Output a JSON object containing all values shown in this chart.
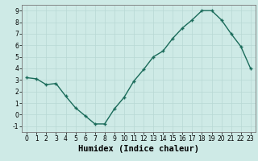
{
  "x": [
    0,
    1,
    2,
    3,
    4,
    5,
    6,
    7,
    8,
    9,
    10,
    11,
    12,
    13,
    14,
    15,
    16,
    17,
    18,
    19,
    20,
    21,
    22,
    23
  ],
  "y": [
    3.2,
    3.1,
    2.6,
    2.7,
    1.6,
    0.6,
    -0.1,
    -0.8,
    -0.8,
    0.5,
    1.5,
    2.9,
    3.9,
    5.0,
    5.5,
    6.6,
    7.5,
    8.2,
    9.0,
    9.0,
    8.2,
    7.0,
    5.9,
    4.0
  ],
  "line_color": "#1a6b5a",
  "marker": "+",
  "marker_size": 3,
  "linewidth": 1.0,
  "xlabel": "Humidex (Indice chaleur)",
  "xlim": [
    -0.5,
    23.5
  ],
  "ylim": [
    -1.5,
    9.5
  ],
  "yticks": [
    -1,
    0,
    1,
    2,
    3,
    4,
    5,
    6,
    7,
    8,
    9
  ],
  "xticks": [
    0,
    1,
    2,
    3,
    4,
    5,
    6,
    7,
    8,
    9,
    10,
    11,
    12,
    13,
    14,
    15,
    16,
    17,
    18,
    19,
    20,
    21,
    22,
    23
  ],
  "bg_color": "#ceeae6",
  "grid_color": "#b8d8d4",
  "tick_label_fontsize": 5.5,
  "xlabel_fontsize": 7.5
}
